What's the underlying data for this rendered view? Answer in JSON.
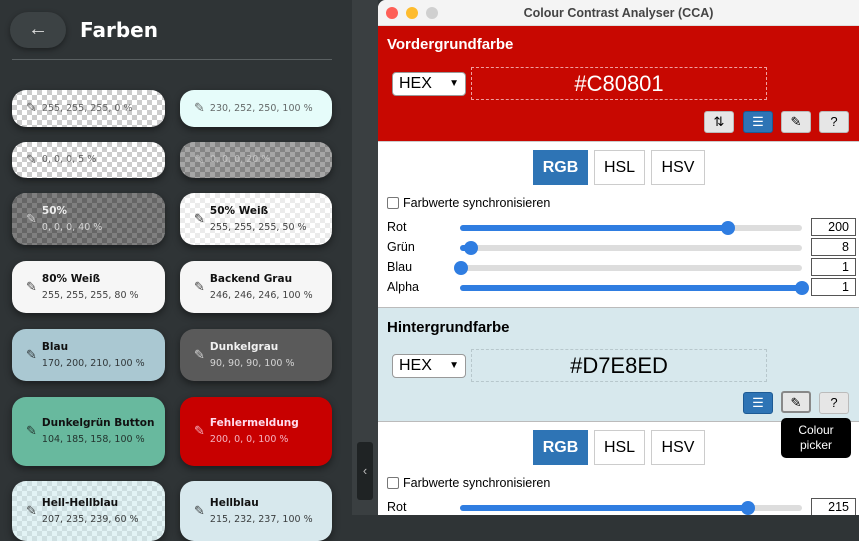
{
  "left": {
    "back_icon": "arrow-left-icon",
    "title": "Farben",
    "cards": [
      {
        "name": "",
        "value": "255, 255, 255, 0 %",
        "bg": "checker",
        "color": "#444"
      },
      {
        "name": "",
        "value": "230, 252, 250, 100 %",
        "bg": "#e6fcfa",
        "color": "#444"
      },
      {
        "name": "",
        "value": "0, 0, 0, 5 %",
        "bg": "checker",
        "color": "#444"
      },
      {
        "name": "",
        "value": "0, 0, 0, 20 %",
        "bg": "checker-dark20",
        "color": "#ccc"
      },
      {
        "name": "50%",
        "value": "0, 0, 0, 40 %",
        "bg": "checker-dark40",
        "color": "#eee"
      },
      {
        "name": "50% Weiß",
        "value": "255, 255, 255, 50 %",
        "bg": "checker-light50",
        "color": "#111"
      },
      {
        "name": "80% Weiß",
        "value": "255, 255, 255, 80 %",
        "bg": "#f6f6f6",
        "color": "#111"
      },
      {
        "name": "Backend Grau",
        "value": "246, 246, 246, 100 %",
        "bg": "#f6f6f6",
        "color": "#111"
      },
      {
        "name": "Blau",
        "value": "170, 200, 210, 100 %",
        "bg": "#aac8d2",
        "color": "#111"
      },
      {
        "name": "Dunkelgrau",
        "value": "90, 90, 90, 100 %",
        "bg": "#5a5a5a",
        "color": "#f0f0f0"
      },
      {
        "name": "Dunkelgrün Button",
        "value": "104, 185, 158, 100 %",
        "bg": "#68b99e",
        "color": "#111"
      },
      {
        "name": "Fehlermeldung",
        "value": "200, 0, 0, 100 %",
        "bg": "#c80000",
        "color": "#fde"
      },
      {
        "name": "Hell-Hellblau",
        "value": "207, 235, 239, 60 %",
        "bg": "checker-blue",
        "color": "#111"
      },
      {
        "name": "Hellblau",
        "value": "215, 232, 237, 100 %",
        "bg": "#d7e8ed",
        "color": "#111"
      }
    ]
  },
  "window": {
    "title": "Colour Contrast Analyser (CCA)",
    "foreground": {
      "heading": "Vordergrundfarbe",
      "format": "HEX",
      "hex": "#C80801",
      "bg": "#c80801",
      "tools": [
        "swap-icon",
        "sliders-icon",
        "eyedropper-icon",
        "help-icon"
      ],
      "tabs": [
        "RGB",
        "HSL",
        "HSV"
      ],
      "active_tab": "RGB",
      "sync_label": "Farbwerte synchronisieren",
      "sync_checked": false,
      "channels": [
        {
          "label": "Rot",
          "value": "200",
          "fraction": 0.784
        },
        {
          "label": "Grün",
          "value": "8",
          "fraction": 0.031
        },
        {
          "label": "Blau",
          "value": "1",
          "fraction": 0.004
        },
        {
          "label": "Alpha",
          "value": "1",
          "fraction": 1
        }
      ]
    },
    "background": {
      "heading": "Hintergrundfarbe",
      "format": "HEX",
      "hex": "#D7E8ED",
      "bg": "#d7e8ed",
      "tools": [
        "sliders-icon",
        "eyedropper-icon",
        "help-icon"
      ],
      "tabs": [
        "RGB",
        "HSL",
        "HSV"
      ],
      "active_tab": "RGB",
      "sync_label": "Farbwerte synchronisieren",
      "sync_checked": false,
      "channels": [
        {
          "label": "Rot",
          "value": "215",
          "fraction": 0.843
        }
      ]
    },
    "tooltip": "Colour picker"
  }
}
